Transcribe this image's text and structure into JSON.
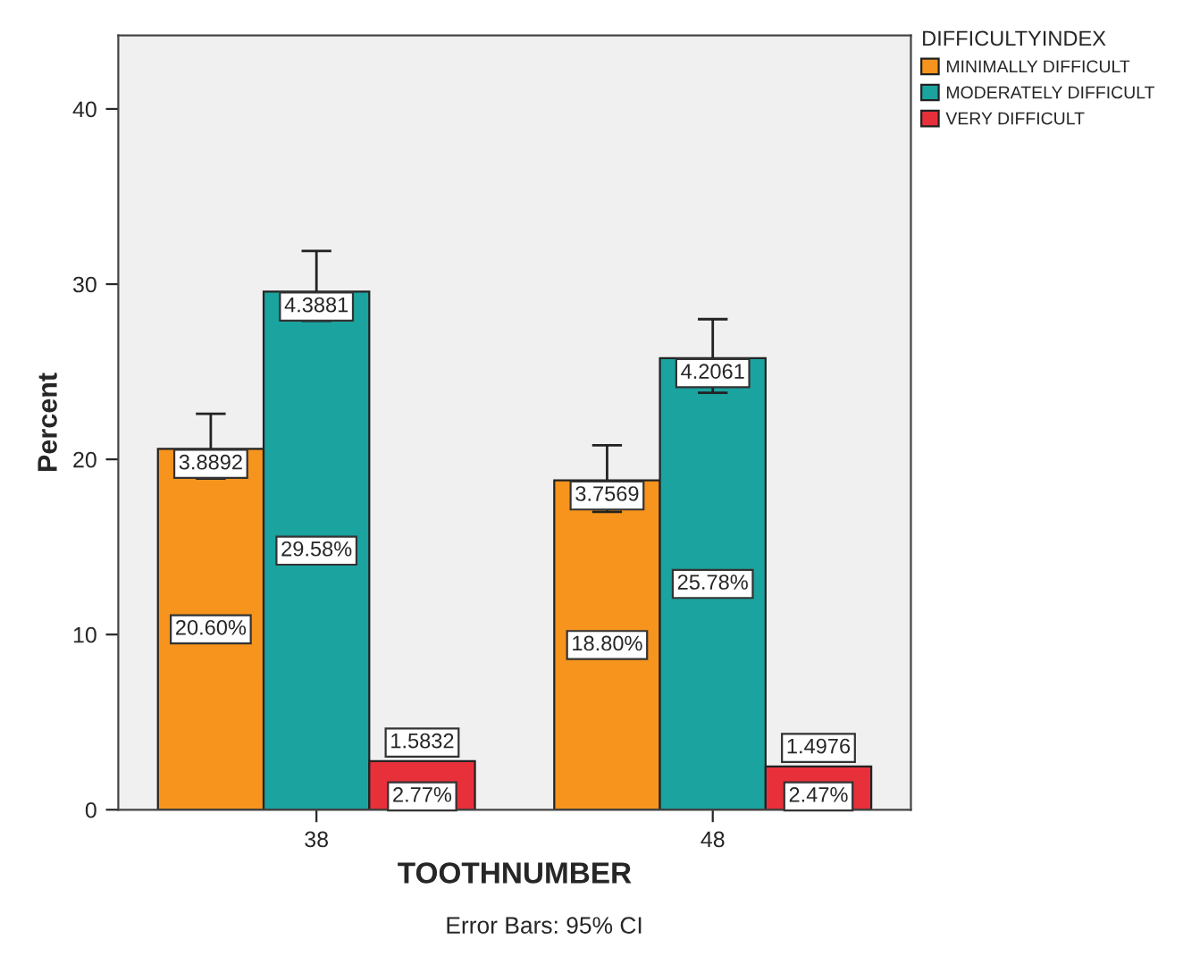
{
  "chart_data": {
    "type": "bar",
    "xlabel": "TOOTHNUMBER",
    "ylabel": "Percent",
    "legend_title": "DIFFICULTYINDEX",
    "categories": [
      "38",
      "48"
    ],
    "series": [
      {
        "name": "MINIMALLY DIFFICULT",
        "color": "#f7941d",
        "values": [
          20.6,
          18.8
        ],
        "errors": [
          [
            18.9,
            22.6
          ],
          [
            17.0,
            20.8
          ]
        ],
        "value_labels": [
          "20.60%",
          "18.80%"
        ]
      },
      {
        "name": "MODERATELY DIFFICULT",
        "color": "#1ba3a0",
        "values": [
          29.58,
          25.78
        ],
        "errors": [
          [
            27.9,
            31.9
          ],
          [
            23.8,
            28.0
          ]
        ],
        "value_labels": [
          "29.58%",
          "25.78%"
        ]
      },
      {
        "name": "VERY DIFFICULT",
        "color": "#e8303a",
        "values": [
          2.77,
          2.47
        ],
        "value_labels": [
          "2.77%",
          "2.47%"
        ]
      }
    ],
    "ylim": [
      0,
      44.2
    ],
    "yticks": [
      0,
      10,
      20,
      30,
      40
    ],
    "grid": false,
    "legend": "top right",
    "annotations": [
      "3.8892",
      "4.3881",
      "1.5832",
      "3.7569",
      "4.2061",
      "1.4976",
      "Error Bars: 95% CI"
    ]
  }
}
